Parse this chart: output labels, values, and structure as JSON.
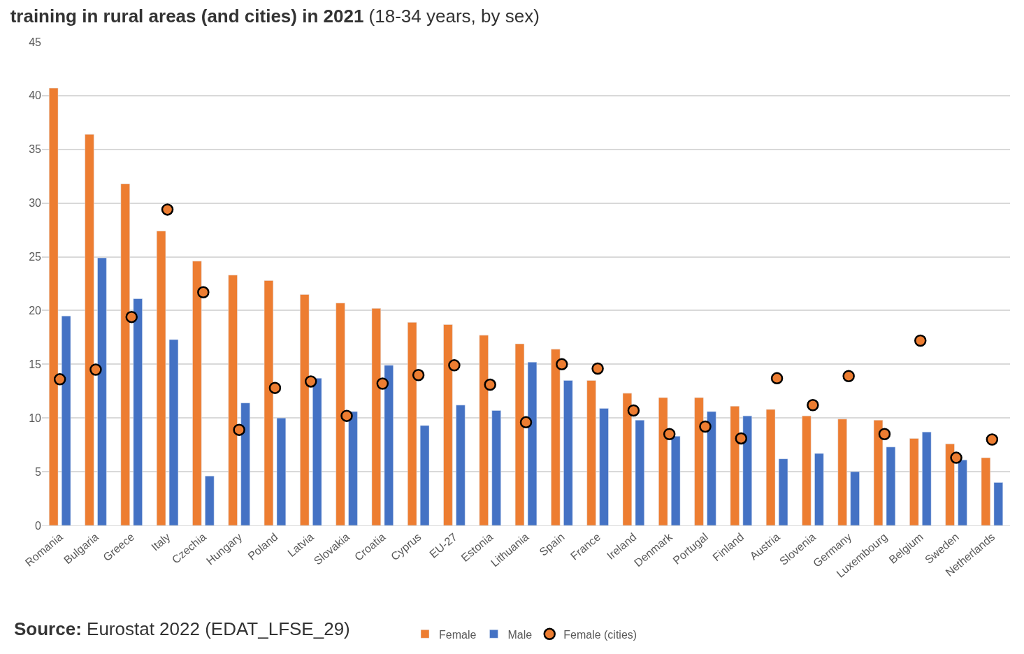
{
  "chart_data": {
    "type": "bar",
    "title": "training in rural areas (and cities) in 2021",
    "subtitle": "(18-34 years, by sex)",
    "categories": [
      "Romania",
      "Bulgaria",
      "Greece",
      "Italy",
      "Czechia",
      "Hungary",
      "Poland",
      "Latvia",
      "Slovakia",
      "Croatia",
      "Cyprus",
      "EU-27",
      "Estonia",
      "Lithuania",
      "Spain",
      "France",
      "Ireland",
      "Denmark",
      "Portugal",
      "Finland",
      "Austria",
      "Slovenia",
      "Germany",
      "Luxembourg",
      "Belgium",
      "Sweden",
      "Netherlands"
    ],
    "series": [
      {
        "name": "Female",
        "color": "#ed7d31",
        "values": [
          40.7,
          36.4,
          31.8,
          27.4,
          24.6,
          23.3,
          22.8,
          21.5,
          20.7,
          20.2,
          18.9,
          18.7,
          17.7,
          16.9,
          16.4,
          13.5,
          12.3,
          11.9,
          11.9,
          11.1,
          10.8,
          10.2,
          9.9,
          9.8,
          8.1,
          7.6,
          6.3
        ]
      },
      {
        "name": "Male",
        "color": "#4472c4",
        "values": [
          19.5,
          24.9,
          21.1,
          17.3,
          4.6,
          11.4,
          10.0,
          13.7,
          10.6,
          14.9,
          9.3,
          11.2,
          10.7,
          15.2,
          13.5,
          10.9,
          9.8,
          8.3,
          10.6,
          10.2,
          6.2,
          6.7,
          5.0,
          7.3,
          8.7,
          6.1,
          4.0
        ]
      },
      {
        "name": "Female (cities)",
        "type": "scatter",
        "marker": "circle",
        "color": "#ed7d31",
        "values": [
          13.6,
          14.5,
          19.4,
          29.4,
          21.7,
          8.9,
          12.8,
          13.4,
          10.2,
          13.2,
          14.0,
          14.9,
          13.1,
          9.6,
          15.0,
          14.6,
          10.7,
          8.5,
          9.2,
          8.1,
          13.7,
          11.2,
          13.9,
          8.5,
          17.2,
          6.3,
          8.0
        ]
      }
    ],
    "ylim": [
      0,
      45
    ],
    "yticks": [
      0,
      5,
      10,
      15,
      20,
      25,
      30,
      35,
      40,
      45
    ],
    "grid": "y",
    "legend": "bottom",
    "annotations": [
      "Source: Eurostat 2022 (EDAT_LFSE_29)"
    ]
  }
}
